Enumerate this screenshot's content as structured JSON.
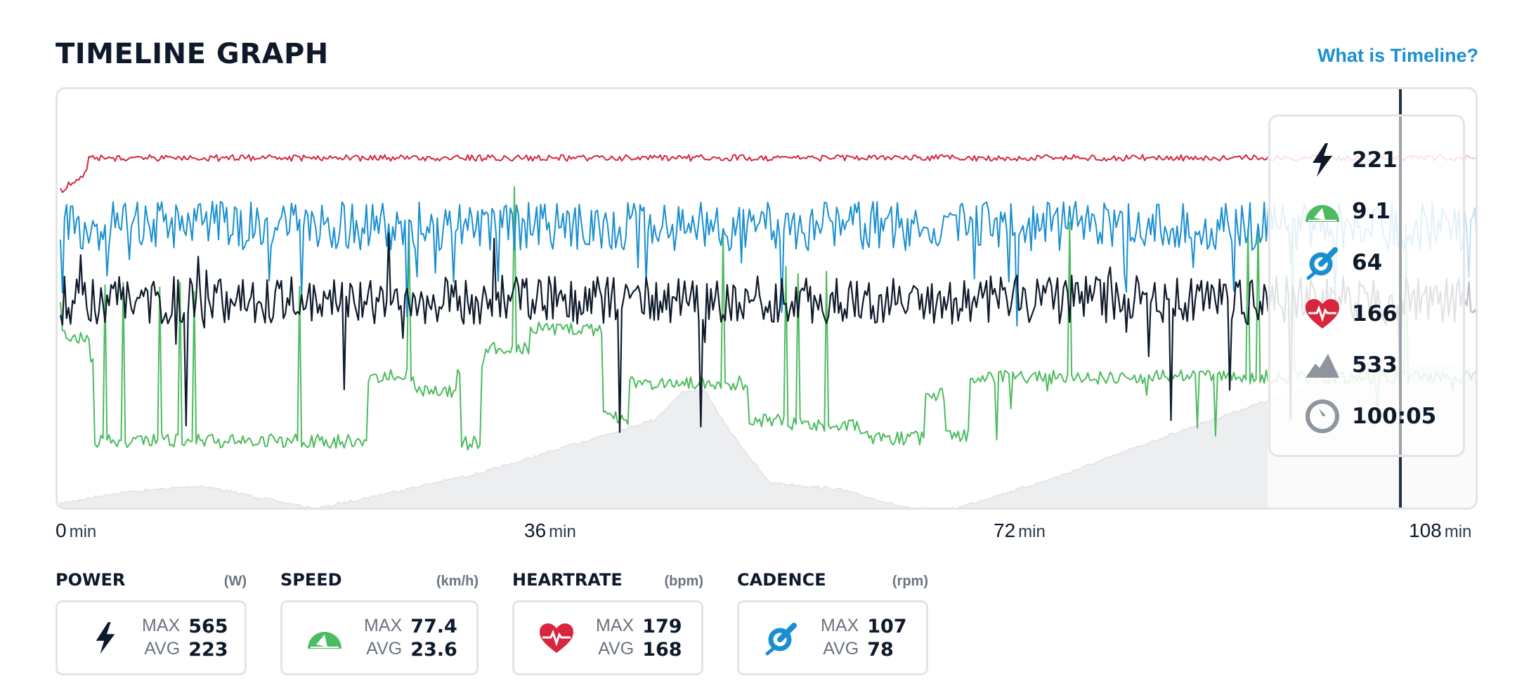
{
  "header": {
    "title": "TIMELINE GRAPH",
    "help_link": "What is Timeline?"
  },
  "colors": {
    "power": "#0e1a2b",
    "speed": "#4dbb5f",
    "cadence": "#1a8fd0",
    "heartrate": "#d7263d",
    "elevation": "#eceef0",
    "accent_link": "#1a8fd0"
  },
  "tooltip": {
    "power": "221",
    "speed": "9.1",
    "cadence": "64",
    "heartrate": "166",
    "elevation": "533",
    "time": "100:05"
  },
  "x_axis": [
    {
      "value": "0",
      "unit": "min"
    },
    {
      "value": "36",
      "unit": "min"
    },
    {
      "value": "72",
      "unit": "min"
    },
    {
      "value": "108",
      "unit": "min"
    }
  ],
  "stats": {
    "power": {
      "label": "POWER",
      "unit": "(W)",
      "max_label": "MAX",
      "max": "565",
      "avg_label": "AVG",
      "avg": "223"
    },
    "speed": {
      "label": "SPEED",
      "unit": "(km/h)",
      "max_label": "MAX",
      "max": "77.4",
      "avg_label": "AVG",
      "avg": "23.6"
    },
    "heartrate": {
      "label": "HEARTRATE",
      "unit": "(bpm)",
      "max_label": "MAX",
      "max": "179",
      "avg_label": "AVG",
      "avg": "168"
    },
    "cadence": {
      "label": "CADENCE",
      "unit": "(rpm)",
      "max_label": "MAX",
      "max": "107",
      "avg_label": "AVG",
      "avg": "78"
    }
  },
  "cursor_minute": 100.1
}
